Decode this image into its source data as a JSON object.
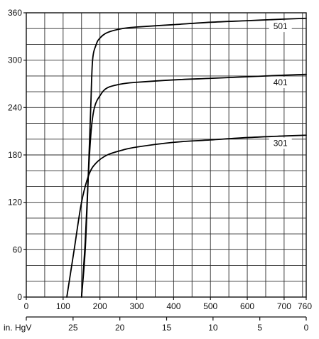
{
  "chart_data": {
    "type": "line",
    "title": "",
    "xlabel": "",
    "ylabel": "",
    "xlim": [
      0,
      760
    ],
    "ylim": [
      0,
      360
    ],
    "grid": true,
    "x_ticks": [
      0,
      100,
      200,
      300,
      400,
      500,
      600,
      700,
      760
    ],
    "y_ticks": [
      0,
      60,
      120,
      180,
      240,
      300,
      360
    ],
    "secondary_x_axis": {
      "label": "in. HgV",
      "ticks": [
        {
          "value": 25,
          "x": 127
        },
        {
          "value": 20,
          "x": 254
        },
        {
          "value": 15,
          "x": 381
        },
        {
          "value": 10,
          "x": 507
        },
        {
          "value": 5,
          "x": 634
        },
        {
          "value": 0,
          "x": 760
        }
      ]
    },
    "series": [
      {
        "name": "501",
        "points": [
          [
            150,
            0
          ],
          [
            160,
            60
          ],
          [
            168,
            150
          ],
          [
            175,
            240
          ],
          [
            180,
            300
          ],
          [
            190,
            320
          ],
          [
            200,
            328
          ],
          [
            220,
            335
          ],
          [
            260,
            340
          ],
          [
            300,
            342
          ],
          [
            400,
            345
          ],
          [
            500,
            348
          ],
          [
            600,
            350
          ],
          [
            700,
            352
          ],
          [
            760,
            353
          ]
        ]
      },
      {
        "name": "401",
        "points": [
          [
            150,
            0
          ],
          [
            160,
            70
          ],
          [
            168,
            150
          ],
          [
            176,
            210
          ],
          [
            185,
            240
          ],
          [
            200,
            255
          ],
          [
            220,
            265
          ],
          [
            260,
            270
          ],
          [
            300,
            272
          ],
          [
            400,
            275
          ],
          [
            500,
            277
          ],
          [
            600,
            279
          ],
          [
            700,
            281
          ],
          [
            760,
            282
          ]
        ]
      },
      {
        "name": "301",
        "points": [
          [
            110,
            0
          ],
          [
            130,
            60
          ],
          [
            150,
            120
          ],
          [
            170,
            155
          ],
          [
            190,
            170
          ],
          [
            220,
            180
          ],
          [
            260,
            186
          ],
          [
            300,
            190
          ],
          [
            400,
            196
          ],
          [
            500,
            199
          ],
          [
            600,
            202
          ],
          [
            700,
            204
          ],
          [
            760,
            205
          ]
        ]
      }
    ]
  }
}
